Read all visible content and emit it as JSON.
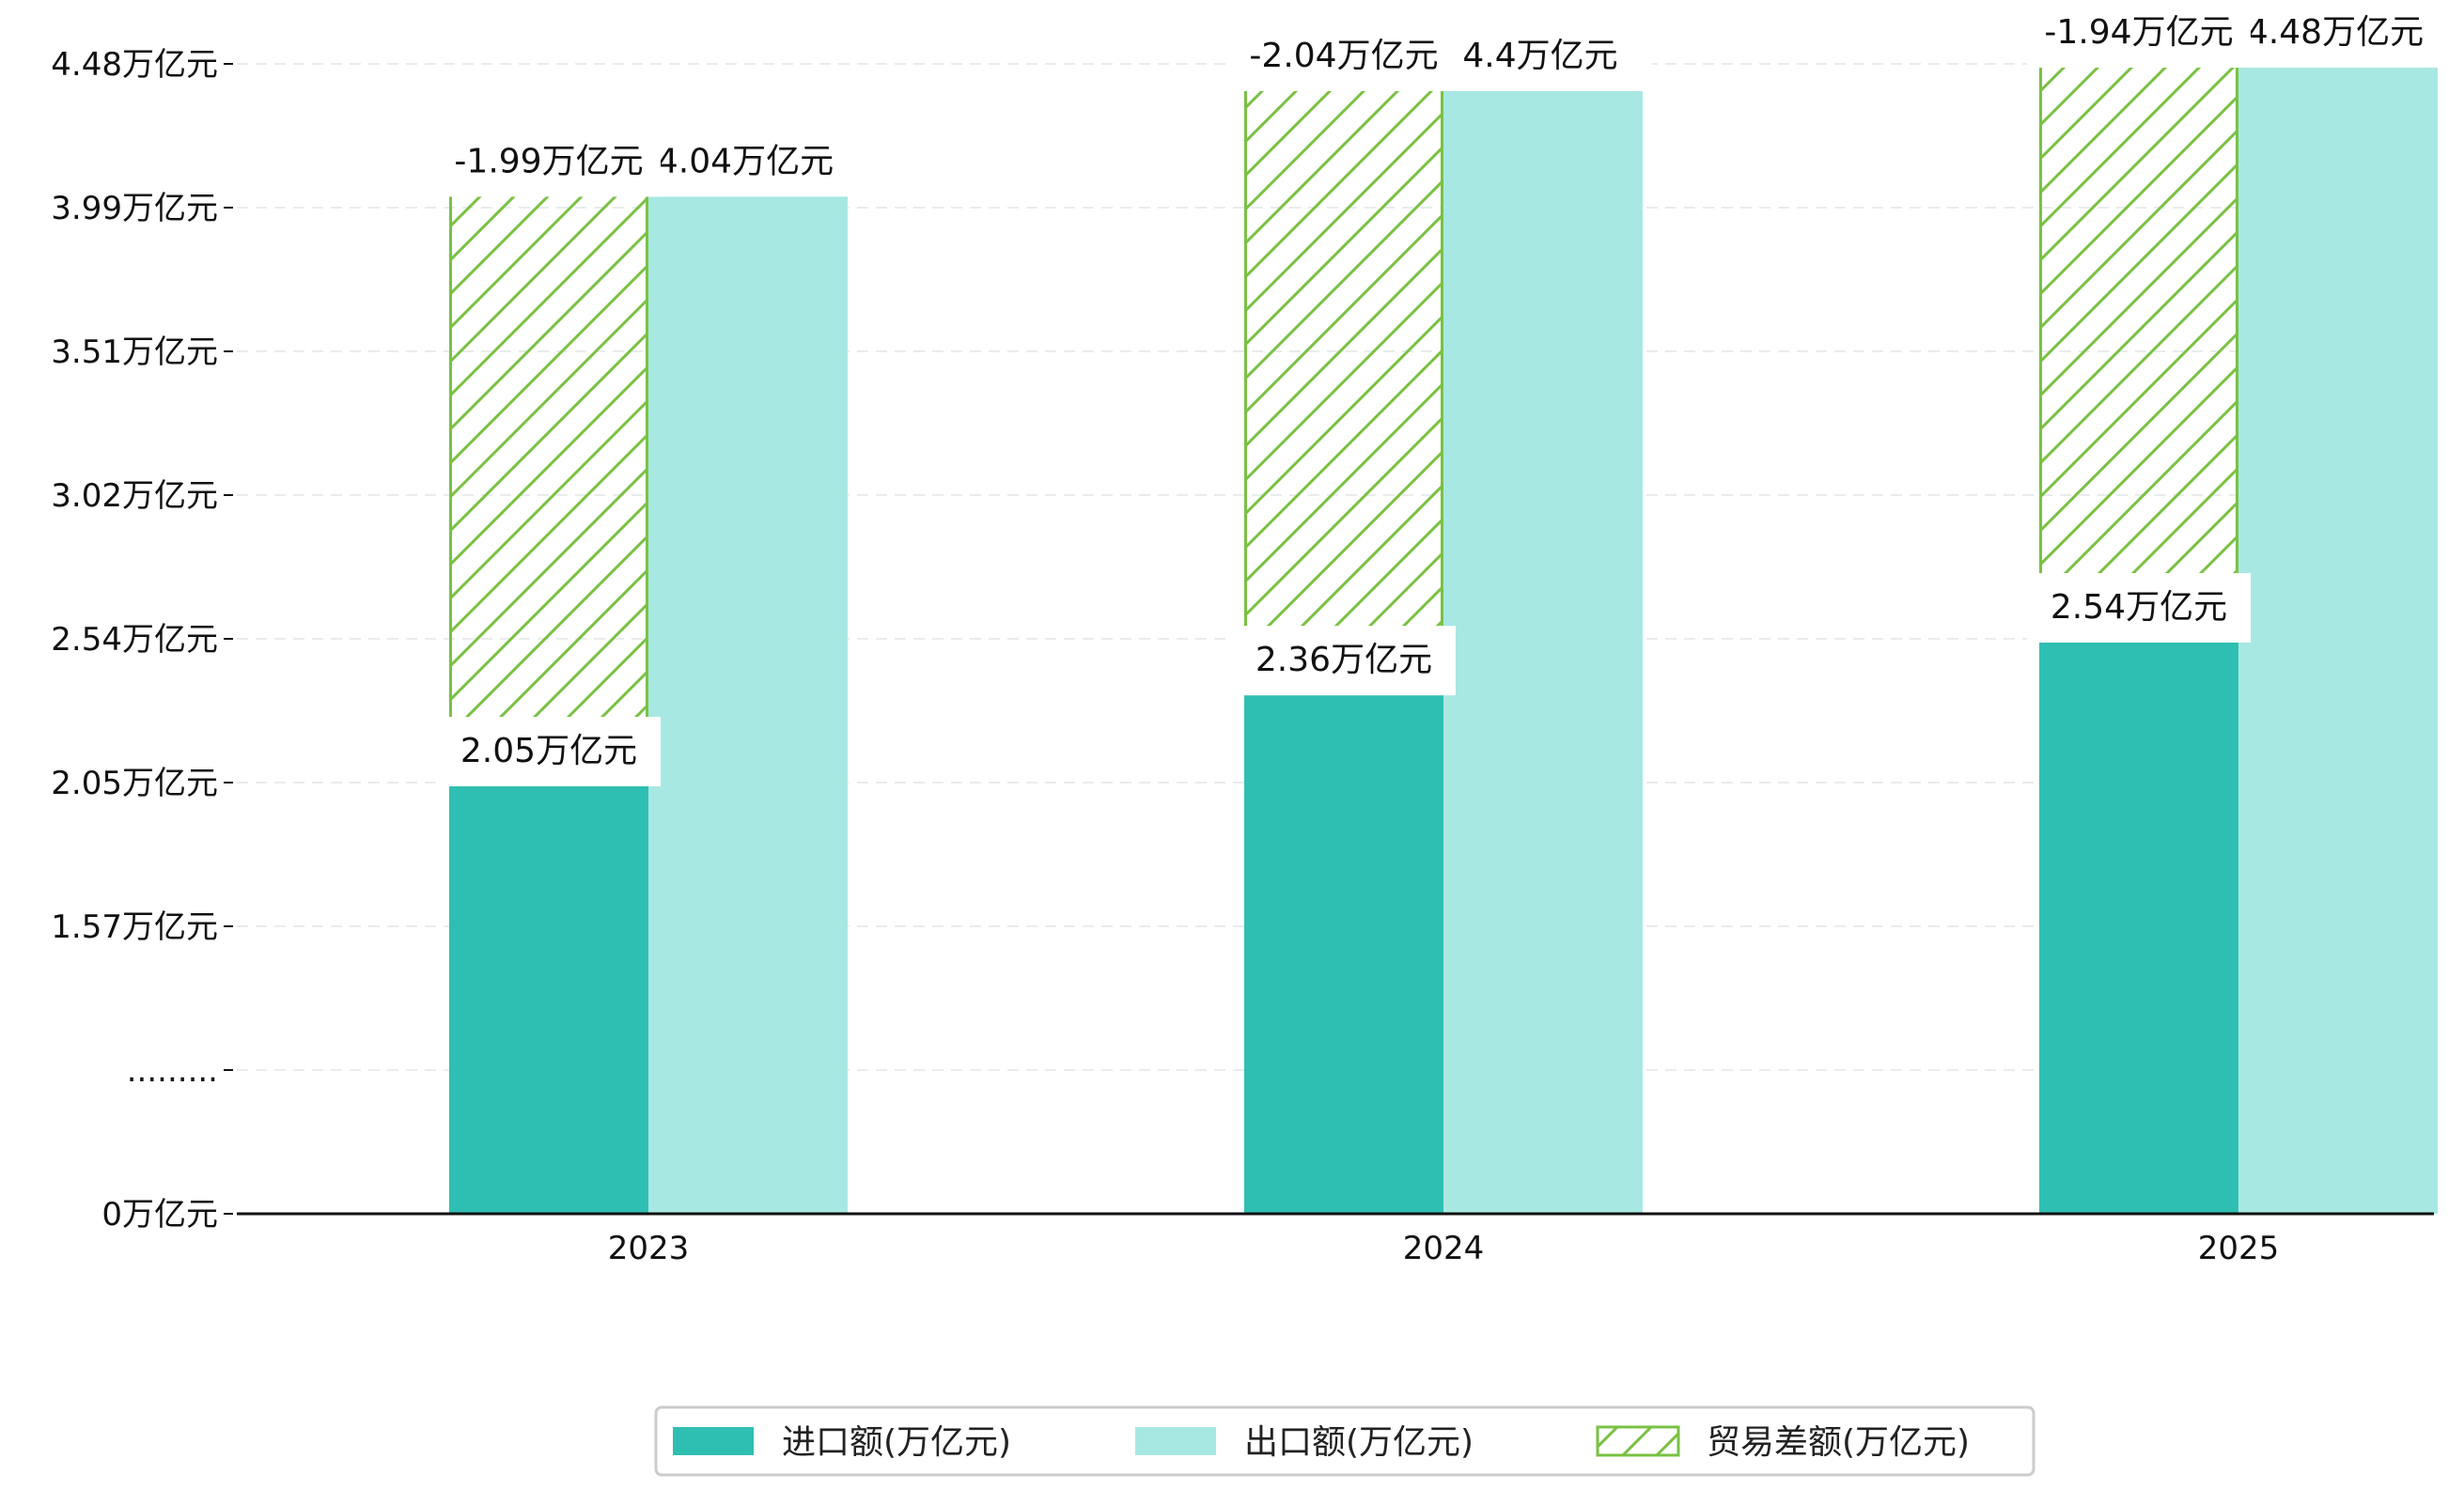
{
  "chart_data": {
    "type": "bar",
    "categories": [
      "2023",
      "2024",
      "2025"
    ],
    "series": [
      {
        "name": "进口额(万亿元)",
        "key": "import",
        "values": [
          2.05,
          2.36,
          2.54
        ],
        "labels": [
          "2.05万亿元",
          "2.36万亿元",
          "2.54万亿元"
        ],
        "color": "#2fbfb2"
      },
      {
        "name": "出口额(万亿元)",
        "key": "export",
        "values": [
          4.04,
          4.4,
          4.48
        ],
        "labels": [
          "4.04万亿元",
          "4.4万亿元",
          "4.48万亿元"
        ],
        "color": "#a8e8e2"
      },
      {
        "name": "贸易差额(万亿元)",
        "key": "balance",
        "values": [
          -1.99,
          -2.04,
          -1.94
        ],
        "labels": [
          "-1.99万亿元",
          "-2.04万亿元",
          "-1.94万亿元"
        ],
        "color": "#7ac143",
        "pattern": "hatch"
      }
    ],
    "y_ticks": [
      {
        "value": 0,
        "label": "0万亿元"
      },
      {
        "value": 0.5,
        "label": "........."
      },
      {
        "value": 1.57,
        "label": "1.57万亿元"
      },
      {
        "value": 2.05,
        "label": "2.05万亿元"
      },
      {
        "value": 2.54,
        "label": "2.54万亿元"
      },
      {
        "value": 3.02,
        "label": "3.02万亿元"
      },
      {
        "value": 3.51,
        "label": "3.51万亿元"
      },
      {
        "value": 3.99,
        "label": "3.99万亿元"
      },
      {
        "value": 4.48,
        "label": "4.48万亿元"
      }
    ],
    "axis_break": true,
    "grid": "horizontal dashed",
    "legend_position": "bottom-center",
    "title": "",
    "xlabel": "",
    "ylabel": ""
  }
}
